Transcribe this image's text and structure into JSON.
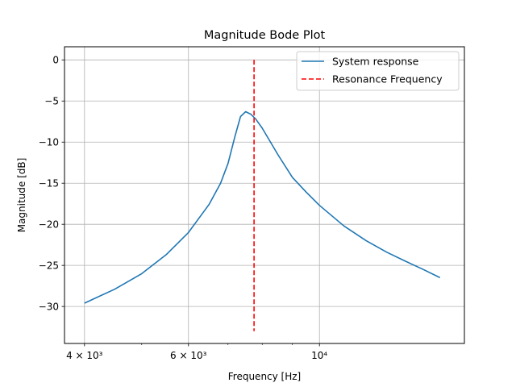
{
  "chart_data": {
    "type": "line",
    "title": "Magnitude Bode Plot",
    "xlabel": "Frequency [Hz]",
    "ylabel": "Magnitude [dB]",
    "xscale": "log",
    "xlim": [
      3700,
      17600
    ],
    "ylim": [
      -34.5,
      1.6
    ],
    "grid": "major",
    "legend_position": "top-right",
    "x_ticks": [
      {
        "value": 4000,
        "label": "4 × 10³"
      },
      {
        "value": 6000,
        "label": "6 × 10³"
      },
      {
        "value": 10000,
        "label": "10⁴"
      }
    ],
    "x_minor_ticks": [
      5000,
      7000,
      8000,
      9000
    ],
    "y_ticks": [
      {
        "value": 0,
        "label": "0"
      },
      {
        "value": -5,
        "label": "−5"
      },
      {
        "value": -10,
        "label": "−10"
      },
      {
        "value": -15,
        "label": "−15"
      },
      {
        "value": -20,
        "label": "−20"
      },
      {
        "value": -25,
        "label": "−25"
      },
      {
        "value": -30,
        "label": "−30"
      }
    ],
    "series": [
      {
        "name": "System response",
        "color": "#1f77b4",
        "style": "solid",
        "x": [
          4000,
          4500,
          5000,
          5500,
          6000,
          6500,
          6800,
          7000,
          7200,
          7350,
          7500,
          7650,
          7800,
          8000,
          8500,
          9000,
          9500,
          10000,
          11000,
          12000,
          13000,
          14000,
          15000,
          16000
        ],
        "y": [
          -29.6,
          -27.9,
          -26.0,
          -23.7,
          -21.0,
          -17.6,
          -15.0,
          -12.6,
          -9.2,
          -6.9,
          -6.3,
          -6.6,
          -7.2,
          -8.3,
          -11.5,
          -14.3,
          -16.1,
          -17.7,
          -20.2,
          -22.0,
          -23.4,
          -24.5,
          -25.5,
          -26.5
        ]
      },
      {
        "name": "Resonance Frequency",
        "color": "#ff0000",
        "style": "dashed",
        "x": [
          7750,
          7750
        ],
        "y": [
          0,
          -33
        ]
      }
    ]
  }
}
